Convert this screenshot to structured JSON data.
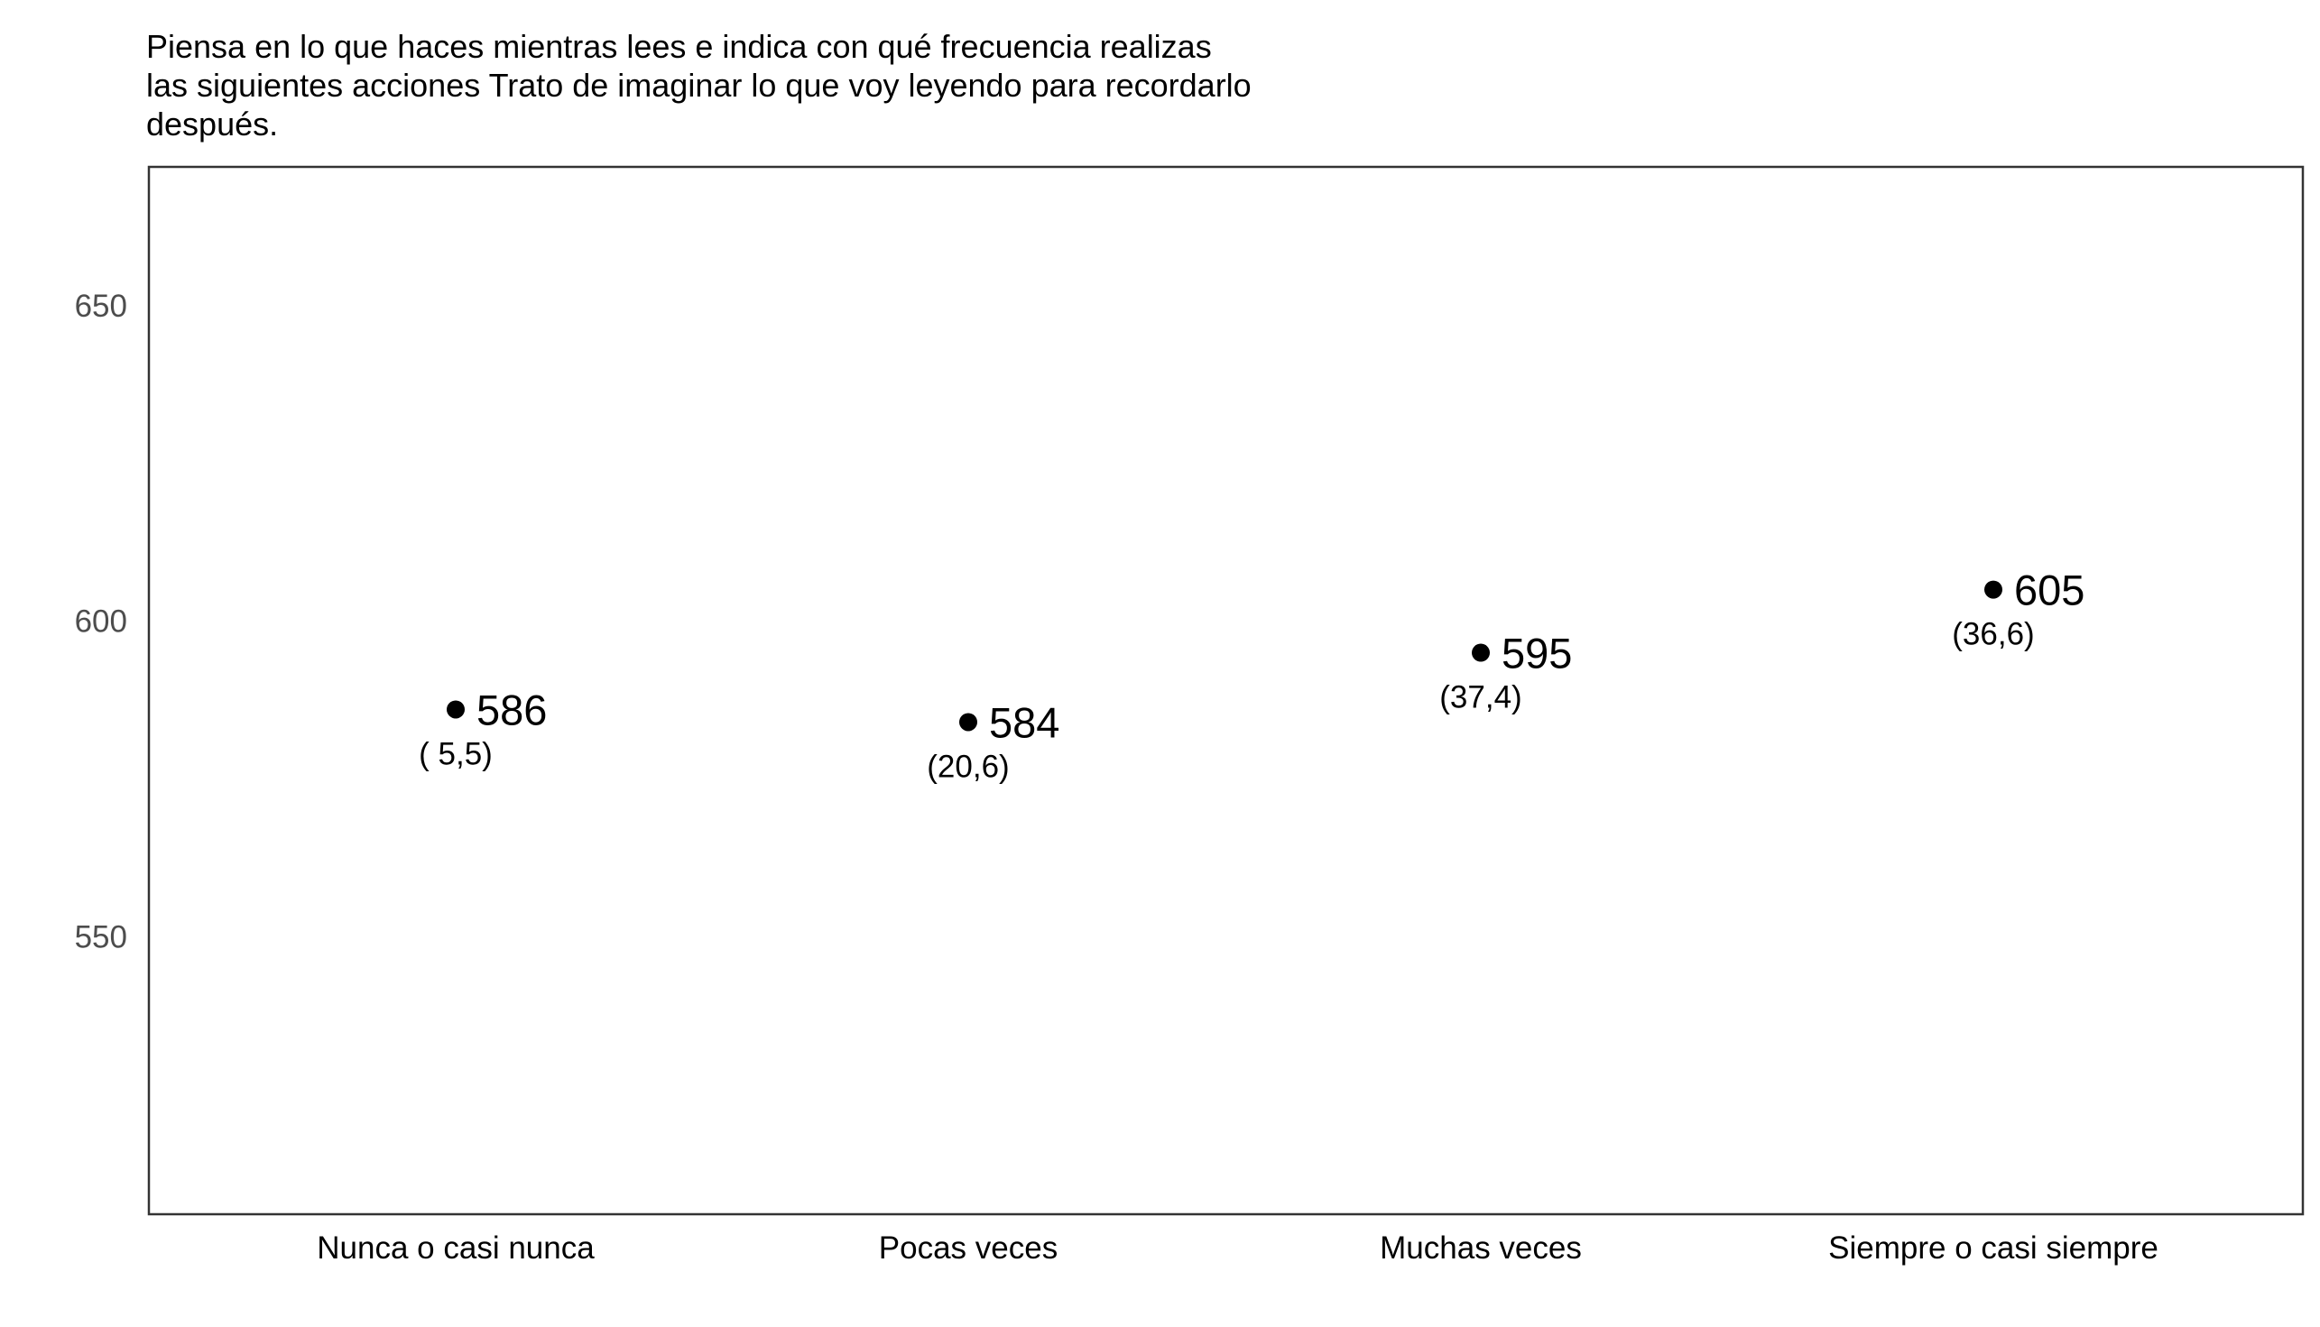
{
  "chart_data": {
    "type": "scatter",
    "title_lines": [
      "Piensa en lo que haces mientras lees e indica con qué frecuencia realizas",
      "las siguientes acciones Trato de imaginar lo que voy leyendo para recordarlo",
      "después."
    ],
    "categories": [
      "Nunca o casi nunca",
      "Pocas veces",
      "Muchas veces",
      "Siempre o casi siempre"
    ],
    "values": [
      586,
      584,
      595,
      605
    ],
    "value_labels": [
      "586",
      "584",
      "595",
      "605"
    ],
    "secondary_labels": [
      "( 5,5)",
      "(20,6)",
      "(37,4)",
      "(36,6)"
    ],
    "ylim": [
      506,
      672
    ],
    "yticks": [
      550,
      600,
      650
    ],
    "ytick_labels": [
      "550",
      "600",
      "650"
    ],
    "xlabel": "",
    "ylabel": "",
    "grid": false,
    "legend": "none",
    "point_color": "#000000",
    "frame_color": "#333333"
  }
}
